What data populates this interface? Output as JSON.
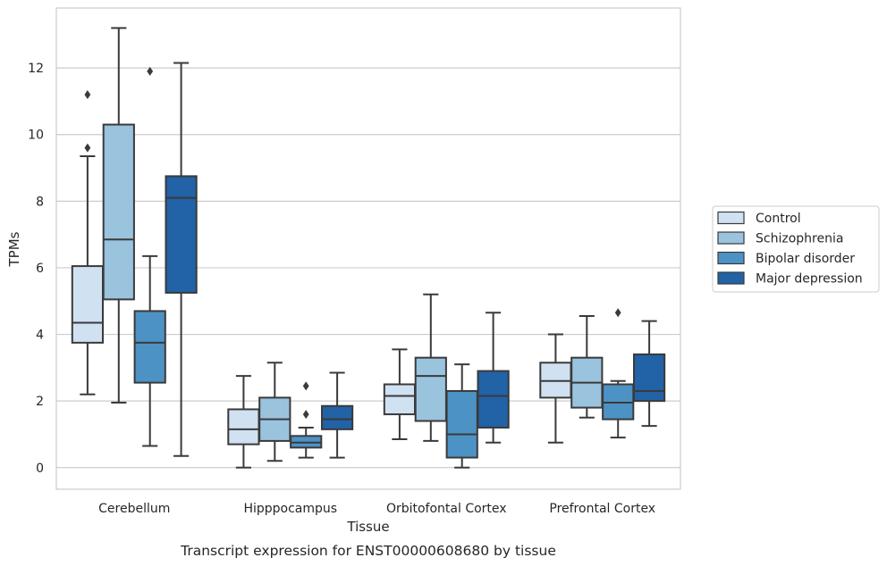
{
  "chart_data": {
    "type": "box",
    "title": "Transcript expression for ENST00000608680 by tissue",
    "xlabel": "Tissue",
    "ylabel": "TPMs",
    "ylim": [
      -0.65,
      13.8
    ],
    "yticks": [
      0,
      2,
      4,
      6,
      8,
      10,
      12
    ],
    "grid": "horizontal",
    "legend_position": "right",
    "categories": [
      "Cerebellum",
      "Hipppocampus",
      "Orbitofontal Cortex",
      "Prefrontal Cortex"
    ],
    "series": [
      {
        "name": "Control",
        "color": "#d0e1f2",
        "boxes": [
          {
            "whislo": 2.2,
            "q1": 3.75,
            "med": 4.35,
            "q3": 6.05,
            "whishi": 9.35,
            "fliers": [
              9.6,
              11.2
            ]
          },
          {
            "whislo": 0.0,
            "q1": 0.7,
            "med": 1.15,
            "q3": 1.75,
            "whishi": 2.75,
            "fliers": []
          },
          {
            "whislo": 0.85,
            "q1": 1.6,
            "med": 2.15,
            "q3": 2.5,
            "whishi": 3.55,
            "fliers": []
          },
          {
            "whislo": 0.75,
            "q1": 2.1,
            "med": 2.6,
            "q3": 3.15,
            "whishi": 4.0,
            "fliers": []
          }
        ]
      },
      {
        "name": "Schizophrenia",
        "color": "#9ac3de",
        "boxes": [
          {
            "whislo": 1.95,
            "q1": 5.05,
            "med": 6.85,
            "q3": 10.3,
            "whishi": 13.2,
            "fliers": []
          },
          {
            "whislo": 0.2,
            "q1": 0.8,
            "med": 1.45,
            "q3": 2.1,
            "whishi": 3.15,
            "fliers": []
          },
          {
            "whislo": 0.8,
            "q1": 1.4,
            "med": 2.75,
            "q3": 3.3,
            "whishi": 5.2,
            "fliers": []
          },
          {
            "whislo": 1.5,
            "q1": 1.8,
            "med": 2.55,
            "q3": 3.3,
            "whishi": 4.55,
            "fliers": []
          }
        ]
      },
      {
        "name": "Bipolar disorder",
        "color": "#4d92c4",
        "boxes": [
          {
            "whislo": 0.65,
            "q1": 2.55,
            "med": 3.75,
            "q3": 4.7,
            "whishi": 6.35,
            "fliers": [
              11.9
            ]
          },
          {
            "whislo": 0.3,
            "q1": 0.6,
            "med": 0.75,
            "q3": 0.95,
            "whishi": 1.2,
            "fliers": [
              1.6,
              2.45
            ]
          },
          {
            "whislo": 0.0,
            "q1": 0.3,
            "med": 1.0,
            "q3": 2.3,
            "whishi": 3.1,
            "fliers": []
          },
          {
            "whislo": 0.9,
            "q1": 1.45,
            "med": 1.95,
            "q3": 2.5,
            "whishi": 2.6,
            "fliers": [
              4.65
            ]
          }
        ]
      },
      {
        "name": "Major depression",
        "color": "#2262a6",
        "boxes": [
          {
            "whislo": 0.35,
            "q1": 5.25,
            "med": 8.1,
            "q3": 8.75,
            "whishi": 12.15,
            "fliers": []
          },
          {
            "whislo": 0.3,
            "q1": 1.15,
            "med": 1.45,
            "q3": 1.85,
            "whishi": 2.85,
            "fliers": []
          },
          {
            "whislo": 0.75,
            "q1": 1.2,
            "med": 2.15,
            "q3": 2.9,
            "whishi": 4.65,
            "fliers": []
          },
          {
            "whislo": 1.25,
            "q1": 2.0,
            "med": 2.3,
            "q3": 3.4,
            "whishi": 4.4,
            "fliers": []
          }
        ]
      }
    ]
  }
}
